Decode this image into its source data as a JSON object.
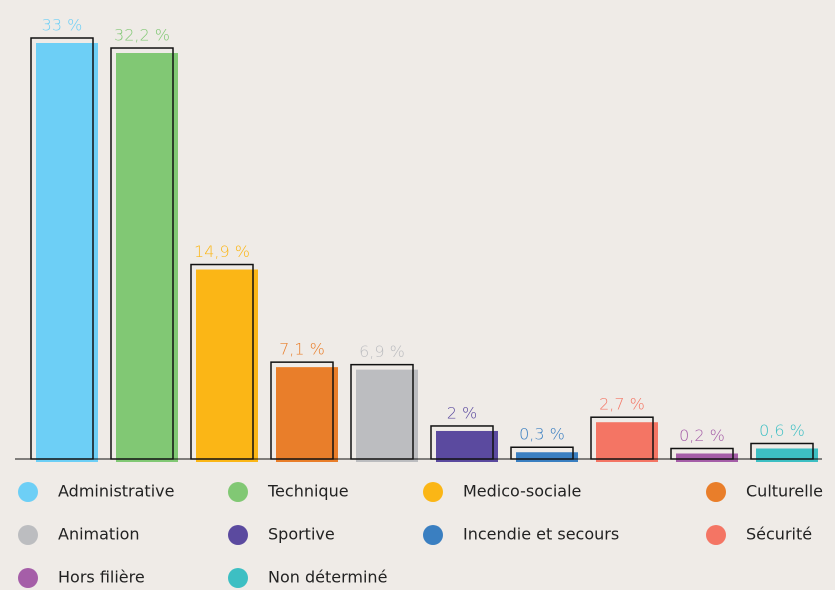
{
  "chart_data": {
    "type": "bar",
    "categories": [
      "Administrative",
      "Technique",
      "Medico-sociale",
      "Culturelle",
      "Animation",
      "Sportive",
      "Incendie et secours",
      "Sécurité",
      "Hors filière",
      "Non déterminé"
    ],
    "values": [
      33,
      32.2,
      14.9,
      7.1,
      6.9,
      2,
      0.3,
      2.7,
      0.2,
      0.6
    ],
    "value_labels": [
      "33 %",
      "32,2 %",
      "14,9 %",
      "7,1 %",
      "6,9 %",
      "2 %",
      "0,3 %",
      "2,7 %",
      "0,2 %",
      "0,6 %"
    ],
    "colors": [
      "#6dcff6",
      "#81c874",
      "#fbb616",
      "#e97e2a",
      "#bcbdc0",
      "#5b4a9f",
      "#3a7fc1",
      "#f47564",
      "#a55ea8",
      "#3dbfc3"
    ]
  }
}
